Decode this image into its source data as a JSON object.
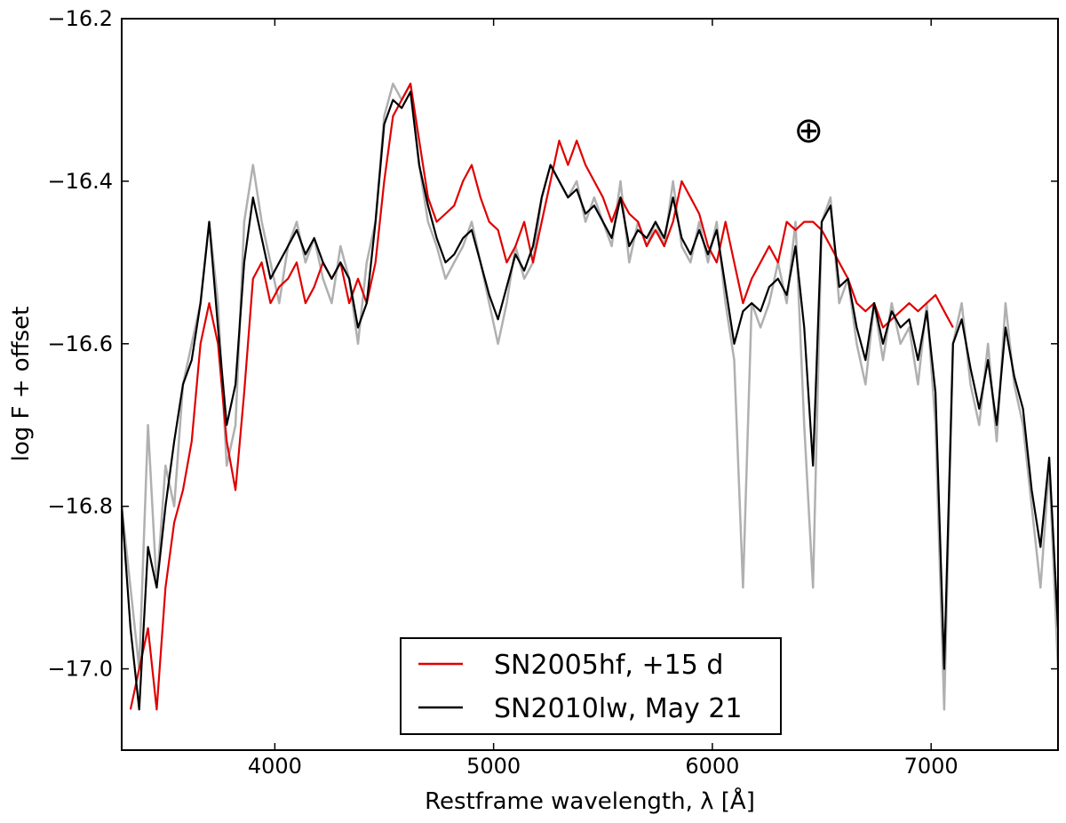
{
  "chart_data": {
    "type": "line",
    "title": "",
    "xlabel": "Restframe wavelength, λ [Å]",
    "ylabel": "log F + offset",
    "xlim": [
      3300,
      7580
    ],
    "ylim": [
      -17.1,
      -16.2
    ],
    "xticks": [
      4000,
      5000,
      6000,
      7000
    ],
    "xtick_labels": [
      "4000",
      "5000",
      "6000",
      "7000"
    ],
    "yticks": [
      -17.0,
      -16.8,
      -16.6,
      -16.4,
      -16.2
    ],
    "ytick_labels": [
      "−17.0",
      "−16.8",
      "−16.6",
      "−16.4",
      "−16.2"
    ],
    "annotation": {
      "text": "⊕",
      "x": 6440,
      "y": -16.34
    },
    "legend": {
      "location": "lower center",
      "entries": [
        {
          "label": "SN2005hf, +15 d",
          "color": "#e00000"
        },
        {
          "label": "SN2010lw, May 21",
          "color": "#000000"
        }
      ]
    },
    "series": [
      {
        "name": "SN2010lw raw (unsmoothed)",
        "color": "#b0b0b0",
        "in_legend": false,
        "x": [
          3300,
          3340,
          3380,
          3420,
          3460,
          3500,
          3540,
          3580,
          3620,
          3660,
          3700,
          3740,
          3780,
          3820,
          3860,
          3900,
          3940,
          3980,
          4020,
          4060,
          4100,
          4140,
          4180,
          4220,
          4260,
          4300,
          4340,
          4380,
          4420,
          4460,
          4500,
          4540,
          4580,
          4620,
          4660,
          4700,
          4740,
          4780,
          4820,
          4860,
          4900,
          4940,
          4980,
          5020,
          5060,
          5100,
          5140,
          5180,
          5220,
          5260,
          5300,
          5340,
          5380,
          5420,
          5460,
          5500,
          5540,
          5580,
          5620,
          5660,
          5700,
          5740,
          5780,
          5820,
          5860,
          5900,
          5940,
          5980,
          6020,
          6060,
          6100,
          6140,
          6180,
          6220,
          6260,
          6300,
          6340,
          6380,
          6420,
          6460,
          6500,
          6540,
          6580,
          6620,
          6660,
          6700,
          6740,
          6780,
          6820,
          6860,
          6900,
          6940,
          6980,
          7020,
          7060,
          7100,
          7140,
          7180,
          7220,
          7260,
          7300,
          7340,
          7380,
          7420,
          7460,
          7500,
          7540,
          7580
        ],
        "y": [
          -16.8,
          -16.9,
          -17.0,
          -16.7,
          -16.9,
          -16.75,
          -16.8,
          -16.65,
          -16.6,
          -16.55,
          -16.45,
          -16.55,
          -16.75,
          -16.7,
          -16.45,
          -16.38,
          -16.45,
          -16.5,
          -16.55,
          -16.48,
          -16.45,
          -16.5,
          -16.47,
          -16.52,
          -16.55,
          -16.48,
          -16.52,
          -16.6,
          -16.5,
          -16.45,
          -16.32,
          -16.28,
          -16.3,
          -16.28,
          -16.38,
          -16.45,
          -16.48,
          -16.52,
          -16.5,
          -16.48,
          -16.45,
          -16.5,
          -16.55,
          -16.6,
          -16.55,
          -16.48,
          -16.52,
          -16.5,
          -16.42,
          -16.38,
          -16.4,
          -16.42,
          -16.4,
          -16.45,
          -16.42,
          -16.45,
          -16.48,
          -16.4,
          -16.5,
          -16.45,
          -16.48,
          -16.45,
          -16.48,
          -16.4,
          -16.48,
          -16.5,
          -16.45,
          -16.5,
          -16.45,
          -16.55,
          -16.62,
          -16.9,
          -16.55,
          -16.58,
          -16.55,
          -16.5,
          -16.55,
          -16.45,
          -16.7,
          -16.9,
          -16.45,
          -16.42,
          -16.55,
          -16.52,
          -16.6,
          -16.65,
          -16.55,
          -16.62,
          -16.55,
          -16.6,
          -16.58,
          -16.65,
          -16.55,
          -16.7,
          -17.05,
          -16.6,
          -16.55,
          -16.65,
          -16.7,
          -16.6,
          -16.72,
          -16.55,
          -16.65,
          -16.7,
          -16.8,
          -16.9,
          -16.75,
          -17.0
        ]
      },
      {
        "name": "SN2005hf, +15 d",
        "color": "#e00000",
        "in_legend": true,
        "x": [
          3340,
          3380,
          3420,
          3460,
          3500,
          3540,
          3580,
          3620,
          3660,
          3700,
          3740,
          3780,
          3820,
          3860,
          3900,
          3940,
          3980,
          4020,
          4060,
          4100,
          4140,
          4180,
          4220,
          4260,
          4300,
          4340,
          4380,
          4420,
          4460,
          4500,
          4540,
          4580,
          4620,
          4660,
          4700,
          4740,
          4780,
          4820,
          4860,
          4900,
          4940,
          4980,
          5020,
          5060,
          5100,
          5140,
          5180,
          5220,
          5260,
          5300,
          5340,
          5380,
          5420,
          5460,
          5500,
          5540,
          5580,
          5620,
          5660,
          5700,
          5740,
          5780,
          5820,
          5860,
          5900,
          5940,
          5980,
          6020,
          6060,
          6100,
          6140,
          6180,
          6220,
          6260,
          6300,
          6340,
          6380,
          6420,
          6460,
          6500,
          6540,
          6580,
          6620,
          6660,
          6700,
          6740,
          6780,
          6820,
          6860,
          6900,
          6940,
          6980,
          7020,
          7060,
          7100
        ],
        "y": [
          -17.05,
          -17.0,
          -16.95,
          -17.05,
          -16.9,
          -16.82,
          -16.78,
          -16.72,
          -16.6,
          -16.55,
          -16.6,
          -16.72,
          -16.78,
          -16.66,
          -16.52,
          -16.5,
          -16.55,
          -16.53,
          -16.52,
          -16.5,
          -16.55,
          -16.53,
          -16.5,
          -16.52,
          -16.5,
          -16.55,
          -16.52,
          -16.55,
          -16.5,
          -16.4,
          -16.32,
          -16.3,
          -16.28,
          -16.35,
          -16.42,
          -16.45,
          -16.44,
          -16.43,
          -16.4,
          -16.38,
          -16.42,
          -16.45,
          -16.46,
          -16.5,
          -16.48,
          -16.45,
          -16.5,
          -16.45,
          -16.4,
          -16.35,
          -16.38,
          -16.35,
          -16.38,
          -16.4,
          -16.42,
          -16.45,
          -16.42,
          -16.44,
          -16.45,
          -16.48,
          -16.46,
          -16.48,
          -16.45,
          -16.4,
          -16.42,
          -16.44,
          -16.48,
          -16.5,
          -16.45,
          -16.5,
          -16.55,
          -16.52,
          -16.5,
          -16.48,
          -16.5,
          -16.45,
          -16.46,
          -16.45,
          -16.45,
          -16.46,
          -16.48,
          -16.5,
          -16.52,
          -16.55,
          -16.56,
          -16.55,
          -16.58,
          -16.57,
          -16.56,
          -16.55,
          -16.56,
          -16.55,
          -16.54,
          -16.56,
          -16.58
        ]
      },
      {
        "name": "SN2010lw, May 21",
        "color": "#000000",
        "in_legend": true,
        "x": [
          3300,
          3340,
          3380,
          3420,
          3460,
          3500,
          3540,
          3580,
          3620,
          3660,
          3700,
          3740,
          3780,
          3820,
          3860,
          3900,
          3940,
          3980,
          4020,
          4060,
          4100,
          4140,
          4180,
          4220,
          4260,
          4300,
          4340,
          4380,
          4420,
          4460,
          4500,
          4540,
          4580,
          4620,
          4660,
          4700,
          4740,
          4780,
          4820,
          4860,
          4900,
          4940,
          4980,
          5020,
          5060,
          5100,
          5140,
          5180,
          5220,
          5260,
          5300,
          5340,
          5380,
          5420,
          5460,
          5500,
          5540,
          5580,
          5620,
          5660,
          5700,
          5740,
          5780,
          5820,
          5860,
          5900,
          5940,
          5980,
          6020,
          6060,
          6100,
          6140,
          6180,
          6220,
          6260,
          6300,
          6340,
          6380,
          6420,
          6460,
          6500,
          6540,
          6580,
          6620,
          6660,
          6700,
          6740,
          6780,
          6820,
          6860,
          6900,
          6940,
          6980,
          7020,
          7060,
          7100,
          7140,
          7180,
          7220,
          7260,
          7300,
          7340,
          7380,
          7420,
          7460,
          7500,
          7540,
          7580
        ],
        "y": [
          -16.8,
          -16.95,
          -17.05,
          -16.85,
          -16.9,
          -16.8,
          -16.72,
          -16.65,
          -16.62,
          -16.55,
          -16.45,
          -16.58,
          -16.7,
          -16.65,
          -16.5,
          -16.42,
          -16.47,
          -16.52,
          -16.5,
          -16.48,
          -16.46,
          -16.49,
          -16.47,
          -16.5,
          -16.52,
          -16.5,
          -16.52,
          -16.58,
          -16.55,
          -16.45,
          -16.33,
          -16.3,
          -16.31,
          -16.29,
          -16.38,
          -16.43,
          -16.47,
          -16.5,
          -16.49,
          -16.47,
          -16.46,
          -16.5,
          -16.54,
          -16.57,
          -16.53,
          -16.49,
          -16.51,
          -16.48,
          -16.42,
          -16.38,
          -16.4,
          -16.42,
          -16.41,
          -16.44,
          -16.43,
          -16.45,
          -16.47,
          -16.42,
          -16.48,
          -16.46,
          -16.47,
          -16.45,
          -16.47,
          -16.42,
          -16.47,
          -16.49,
          -16.46,
          -16.49,
          -16.46,
          -16.53,
          -16.6,
          -16.56,
          -16.55,
          -16.56,
          -16.53,
          -16.52,
          -16.54,
          -16.48,
          -16.58,
          -16.75,
          -16.45,
          -16.43,
          -16.53,
          -16.52,
          -16.58,
          -16.62,
          -16.55,
          -16.6,
          -16.56,
          -16.58,
          -16.57,
          -16.62,
          -16.56,
          -16.66,
          -17.0,
          -16.6,
          -16.57,
          -16.63,
          -16.68,
          -16.62,
          -16.7,
          -16.58,
          -16.64,
          -16.68,
          -16.78,
          -16.85,
          -16.74,
          -16.95
        ]
      }
    ]
  }
}
